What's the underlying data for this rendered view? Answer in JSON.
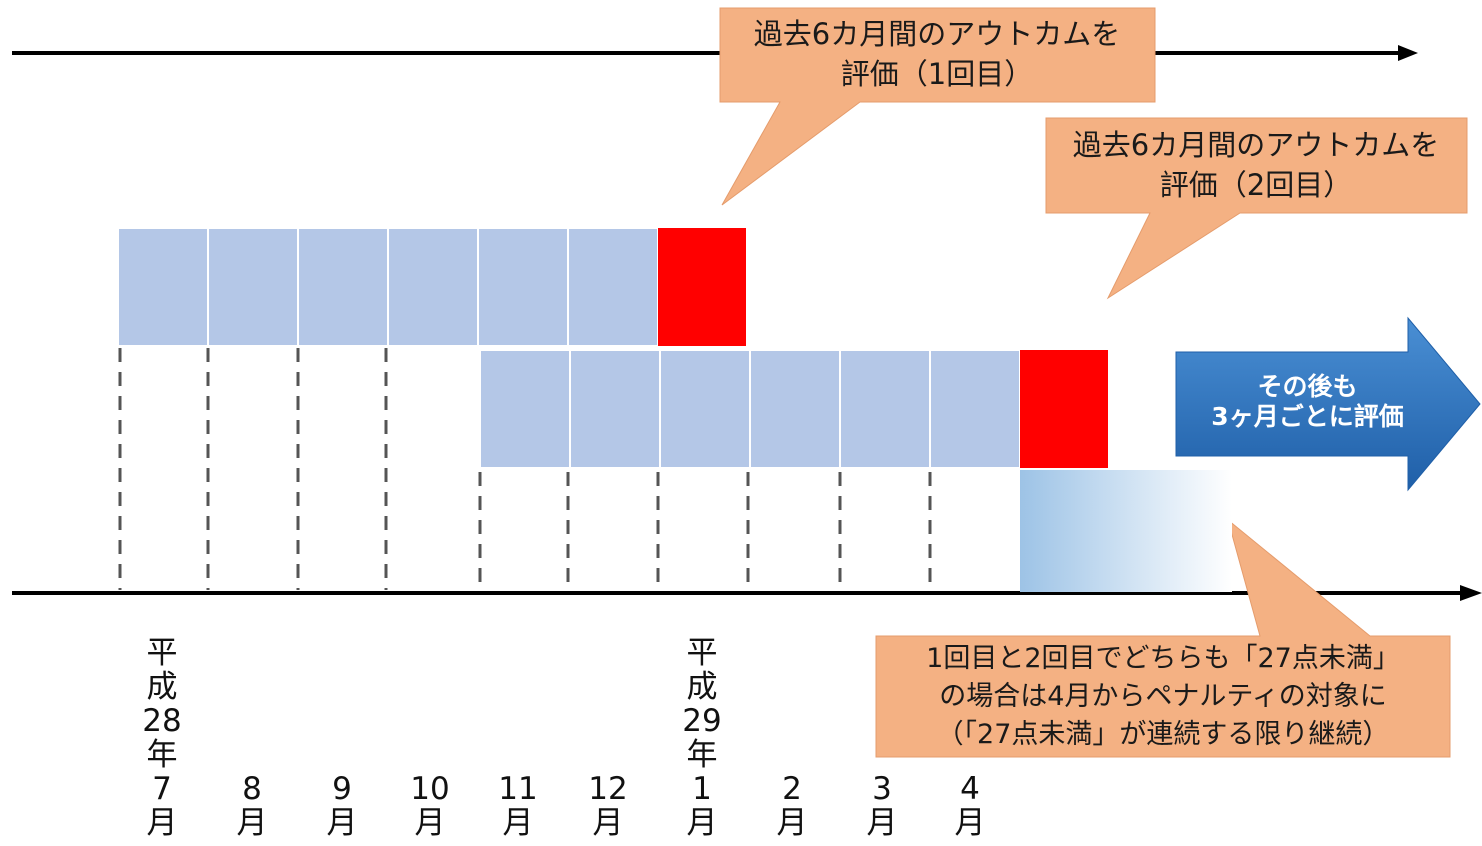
{
  "callouts": {
    "first": {
      "line1": "過去6カ月間のアウトカムを",
      "line2": "評価（1回目）"
    },
    "second": {
      "line1": "過去6カ月間のアウトカムを",
      "line2": "評価（2回目）"
    }
  },
  "big_arrow": {
    "line1": "その後も",
    "line2": "3ヶ月ごとに評価"
  },
  "note": {
    "line1": "1回目と2回目でどちらも「27点未満」",
    "line2": "の場合は4月からペナルティの対象に",
    "line3": "（「27点未満」が連続する限り継続）"
  },
  "months": [
    {
      "lines": [
        "平",
        "成",
        "28",
        "年",
        "7",
        "月"
      ]
    },
    {
      "lines": [
        "8",
        "月"
      ]
    },
    {
      "lines": [
        "9",
        "月"
      ]
    },
    {
      "lines": [
        "10",
        "月"
      ]
    },
    {
      "lines": [
        "11",
        "月"
      ]
    },
    {
      "lines": [
        "12",
        "月"
      ]
    },
    {
      "lines": [
        "平",
        "成",
        "29",
        "年",
        "1",
        "月"
      ]
    },
    {
      "lines": [
        "2",
        "月"
      ]
    },
    {
      "lines": [
        "3",
        "月"
      ]
    },
    {
      "lines": [
        "4",
        "月"
      ]
    }
  ],
  "colors": {
    "period_block": "#b4c7e7",
    "evaluation_month": "#ff0000",
    "callout": "#f4b183",
    "arrow": "#2e75b6",
    "line": "#000000"
  }
}
